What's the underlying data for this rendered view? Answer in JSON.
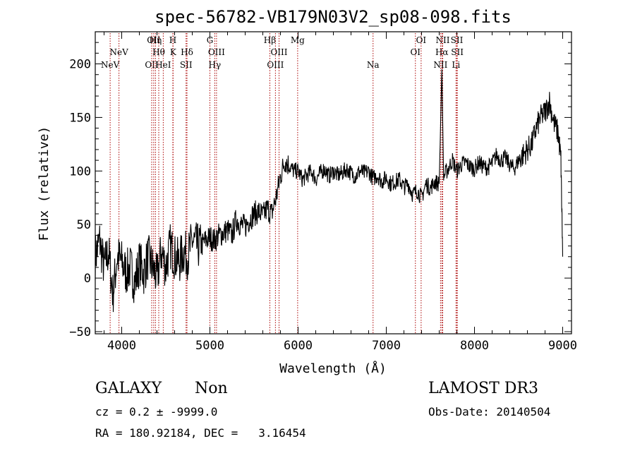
{
  "chart_data": {
    "type": "line",
    "title": "spec-56782-VB179N03V2_sp08-098.fits",
    "xlabel": "Wavelength (Å)",
    "ylabel": "Flux (relative)",
    "xlim": [
      3700,
      9100
    ],
    "ylim": [
      -52,
      230
    ],
    "x_ticks": [
      4000,
      5000,
      6000,
      7000,
      8000,
      9000
    ],
    "y_ticks": [
      -50,
      0,
      50,
      100,
      150,
      200
    ],
    "line_color": "#000000",
    "marker_color": "#aa0000",
    "spectrum": {
      "x": [
        3700,
        3750,
        3800,
        3850,
        3900,
        3950,
        4000,
        4050,
        4100,
        4150,
        4200,
        4250,
        4300,
        4350,
        4400,
        4450,
        4500,
        4550,
        4600,
        4650,
        4700,
        4750,
        4800,
        4850,
        4900,
        4950,
        5000,
        5050,
        5100,
        5150,
        5200,
        5250,
        5300,
        5350,
        5400,
        5450,
        5500,
        5550,
        5600,
        5650,
        5700,
        5750,
        5800,
        5850,
        5900,
        5950,
        6000,
        6050,
        6100,
        6150,
        6200,
        6250,
        6300,
        6350,
        6400,
        6450,
        6500,
        6550,
        6600,
        6650,
        6700,
        6750,
        6800,
        6850,
        6900,
        6950,
        7000,
        7050,
        7100,
        7150,
        7200,
        7250,
        7300,
        7350,
        7400,
        7450,
        7500,
        7550,
        7600,
        7630,
        7650,
        7700,
        7750,
        7800,
        7850,
        7900,
        7950,
        8000,
        8050,
        8100,
        8150,
        8200,
        8250,
        8300,
        8350,
        8400,
        8450,
        8500,
        8550,
        8600,
        8650,
        8700,
        8750,
        8800,
        8850,
        8900,
        8950,
        8980,
        9000
      ],
      "y": [
        20,
        35,
        10,
        25,
        -15,
        20,
        15,
        5,
        10,
        -5,
        15,
        5,
        20,
        10,
        0,
        25,
        10,
        30,
        20,
        15,
        25,
        20,
        35,
        30,
        30,
        35,
        38,
        35,
        40,
        42,
        45,
        40,
        55,
        50,
        48,
        55,
        60,
        62,
        58,
        65,
        60,
        75,
        95,
        110,
        105,
        100,
        100,
        92,
        96,
        100,
        92,
        98,
        102,
        95,
        100,
        96,
        98,
        102,
        98,
        95,
        100,
        98,
        100,
        93,
        96,
        90,
        94,
        88,
        90,
        92,
        85,
        88,
        78,
        82,
        75,
        88,
        84,
        90,
        88,
        195,
        95,
        102,
        110,
        100,
        106,
        108,
        104,
        102,
        108,
        104,
        103,
        107,
        115,
        110,
        112,
        106,
        102,
        110,
        115,
        120,
        125,
        140,
        150,
        155,
        165,
        145,
        135,
        110,
        20
      ]
    },
    "emission_lines": [
      {
        "label": "NeV",
        "x": 3869,
        "row": 3
      },
      {
        "label": "NeV",
        "x": 3969,
        "row": 2
      },
      {
        "label": "OII",
        "x": 4340,
        "row": 3
      },
      {
        "label": "OII",
        "x": 4363,
        "row": 1
      },
      {
        "label": "Hη",
        "x": 4383,
        "row": 1
      },
      {
        "label": "Hθ",
        "x": 4420,
        "row": 2
      },
      {
        "label": "HeI",
        "x": 4471,
        "row": 3
      },
      {
        "label": "H",
        "x": 4580,
        "row": 1
      },
      {
        "label": "K",
        "x": 4583,
        "row": 2
      },
      {
        "label": "SII",
        "x": 4730,
        "row": 3
      },
      {
        "label": "Hδ",
        "x": 4740,
        "row": 2
      },
      {
        "label": "G",
        "x": 5000,
        "row": 1
      },
      {
        "label": "OIII",
        "x": 5075,
        "row": 2
      },
      {
        "label": "Hγ",
        "x": 5055,
        "row": 3
      },
      {
        "label": "Hβ",
        "x": 5680,
        "row": 1
      },
      {
        "label": "OIII",
        "x": 5784,
        "row": 2
      },
      {
        "label": "OIII",
        "x": 5743,
        "row": 3
      },
      {
        "label": "Mg",
        "x": 5995,
        "row": 1
      },
      {
        "label": "Na",
        "x": 6850,
        "row": 3
      },
      {
        "label": "OI",
        "x": 7395,
        "row": 1
      },
      {
        "label": "OI",
        "x": 7330,
        "row": 2
      },
      {
        "label": "NII",
        "x": 7640,
        "row": 1
      },
      {
        "label": "Hα",
        "x": 7630,
        "row": 2
      },
      {
        "label": "NII",
        "x": 7615,
        "row": 3
      },
      {
        "label": "SII",
        "x": 7800,
        "row": 1
      },
      {
        "label": "SII",
        "x": 7805,
        "row": 2
      },
      {
        "label": "Li",
        "x": 7790,
        "row": 3
      }
    ]
  },
  "info": {
    "classification": "GALAXY",
    "subclass": "Non",
    "survey": "LAMOST DR3",
    "redshift_line": "cz = 0.2 ± -9999.0",
    "obs_date_line": "Obs-Date: 20140504",
    "coords_line": "RA = 180.92184, DEC =   3.16454"
  }
}
